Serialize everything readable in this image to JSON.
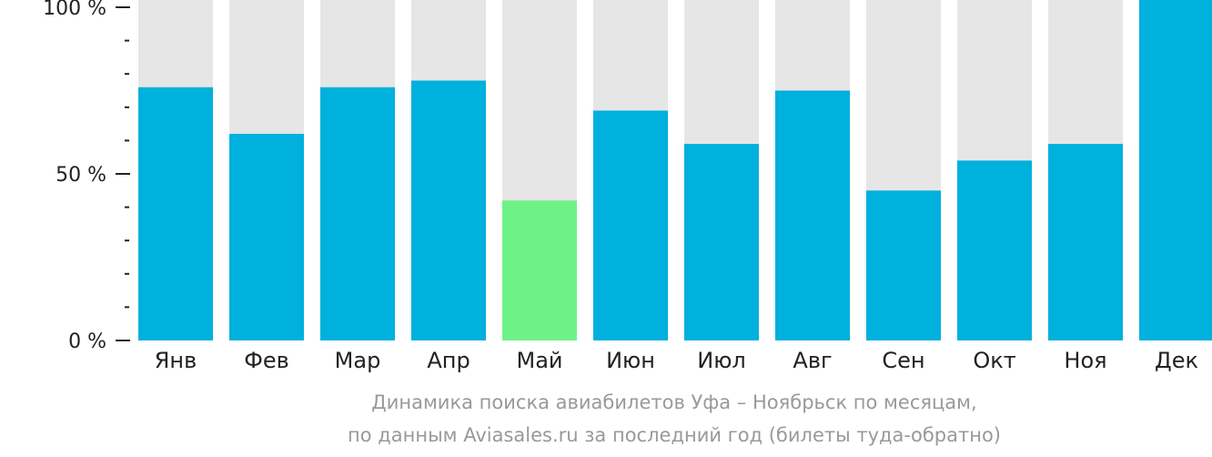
{
  "chart_data": {
    "type": "bar",
    "title": "",
    "xlabel": "",
    "ylabel": "",
    "ylim": [
      0,
      100
    ],
    "categories": [
      "Янв",
      "Фев",
      "Мар",
      "Апр",
      "Май",
      "Июн",
      "Июл",
      "Авг",
      "Сен",
      "Окт",
      "Ноя",
      "Дек"
    ],
    "values": [
      76,
      62,
      76,
      78,
      42,
      69,
      59,
      75,
      45,
      54,
      59,
      100
    ],
    "y_ticks": [
      {
        "value": 0,
        "label": "0 %"
      },
      {
        "value": 50,
        "label": "50 %"
      },
      {
        "value": 100,
        "label": "100 %"
      }
    ],
    "minor_tick_step": 10,
    "highlight_index": 4,
    "grid": false,
    "legend": "none",
    "colors": {
      "bar": "#00b0dd",
      "highlight": "#6ef287",
      "background_bar": "#e6e6e6",
      "axis": "#222222"
    }
  },
  "caption": {
    "line1": "Динамика поиска авиабилетов Уфа – Ноябрьск по месяцам,",
    "line2": "по данным Aviasales.ru за последний год (билеты туда-обратно)"
  }
}
